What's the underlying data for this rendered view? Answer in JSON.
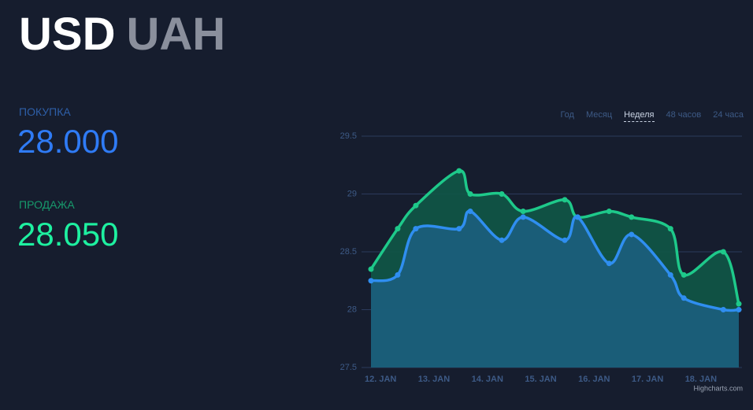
{
  "header": {
    "base": "USD",
    "quote": "UAH"
  },
  "rates": {
    "buy_label": "ПОКУПКА",
    "buy": "28.000",
    "sell_label": "ПРОДАЖА",
    "sell": "28.050"
  },
  "tabs": [
    "Год",
    "Месяц",
    "Неделя",
    "48 часов",
    "24 часа"
  ],
  "credit": "Highcharts.com",
  "chart_data": {
    "type": "areaspline",
    "x": [
      11.82,
      12.32,
      12.66,
      13.47,
      13.68,
      14.27,
      14.67,
      15.45,
      15.69,
      16.28,
      16.7,
      17.43,
      17.68,
      18.42,
      18.71
    ],
    "series": [
      {
        "name": "Продажа",
        "color": "#1ec98a",
        "fill": "#105847",
        "values": [
          28.35,
          28.7,
          28.9,
          29.2,
          29.0,
          29.0,
          28.85,
          28.95,
          28.8,
          28.85,
          28.8,
          28.7,
          28.3,
          28.5,
          28.05
        ]
      },
      {
        "name": "Покупка",
        "color": "#2f8ef0",
        "fill": "#1c5e7e",
        "values": [
          28.25,
          28.3,
          28.7,
          28.7,
          28.85,
          28.6,
          28.8,
          28.6,
          28.8,
          28.4,
          28.65,
          28.3,
          28.1,
          28.0,
          28.0
        ]
      }
    ],
    "xlim": [
      11.82,
      18.71
    ],
    "xticks": [
      {
        "value": 12,
        "label": "12. JAN"
      },
      {
        "value": 13,
        "label": "13. JAN"
      },
      {
        "value": 14,
        "label": "14. JAN"
      },
      {
        "value": 15,
        "label": "15. JAN"
      },
      {
        "value": 16,
        "label": "16. JAN"
      },
      {
        "value": 17,
        "label": "17. JAN"
      },
      {
        "value": 18,
        "label": "18. JAN"
      }
    ],
    "ylim": [
      27.5,
      29.5
    ],
    "yticks": [
      27.5,
      28,
      28.5,
      29,
      29.5
    ],
    "grid": true
  }
}
